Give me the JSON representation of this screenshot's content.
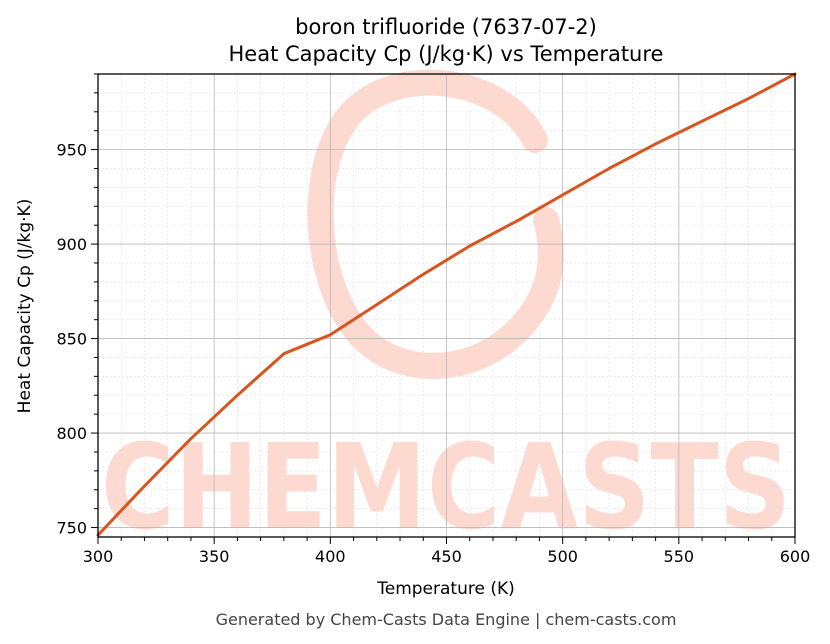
{
  "chart_data": {
    "type": "line",
    "title": "boron trifluoride (7637-07-2)",
    "subtitle": "Heat Capacity Cp (J/kg·K) vs Temperature",
    "xlabel": "Temperature (K)",
    "ylabel": "Heat Capacity Cp (J/kg·K)",
    "xlim": [
      300,
      600
    ],
    "ylim": [
      745,
      990
    ],
    "x_ticks": [
      300,
      350,
      400,
      450,
      500,
      550,
      600
    ],
    "y_ticks": [
      750,
      800,
      850,
      900,
      950
    ],
    "grid": true,
    "line_color": "#d9541e",
    "series": [
      {
        "x": [
          300,
          320,
          340,
          360,
          380,
          400,
          420,
          440,
          460,
          480,
          500,
          520,
          540,
          560,
          580,
          600
        ],
        "values": [
          746,
          772,
          797,
          820,
          842,
          852,
          868,
          884,
          899,
          912,
          926,
          940,
          953,
          965,
          977,
          990
        ]
      }
    ]
  },
  "watermark": {
    "text": "CHEMCASTS",
    "color": "#fdd9d0"
  },
  "footer": "Generated by Chem-Casts Data Engine | chem-casts.com"
}
